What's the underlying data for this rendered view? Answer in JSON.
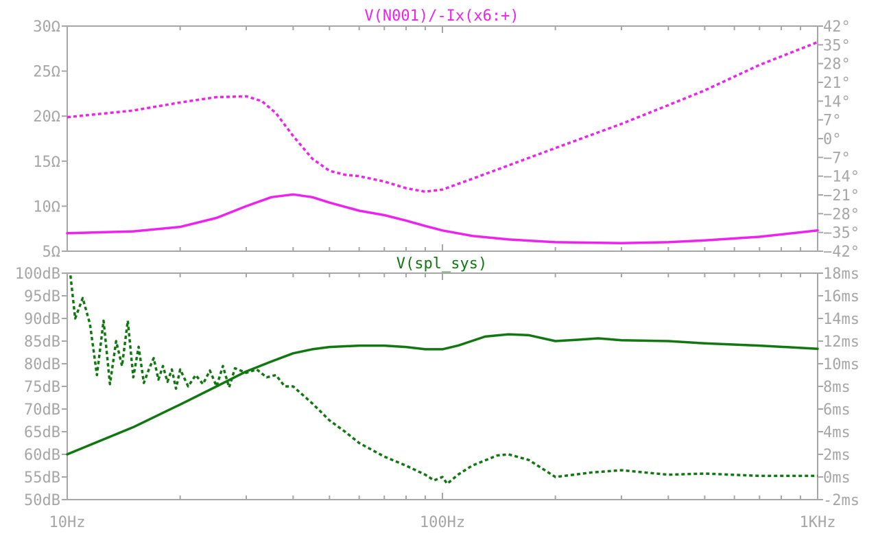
{
  "chart_data": [
    {
      "type": "line",
      "title": "V(N001)/-Ix(x6:+)",
      "color": "#ee22ee",
      "x_scale": "log",
      "xlim": [
        10,
        1000
      ],
      "ylim_left": [
        5,
        30
      ],
      "ylim_right": [
        -42,
        42
      ],
      "left_ticks": [
        {
          "value": 30,
          "label": "30Ω"
        },
        {
          "value": 25,
          "label": "25Ω"
        },
        {
          "value": 20,
          "label": "20Ω"
        },
        {
          "value": 15,
          "label": "15Ω"
        },
        {
          "value": 10,
          "label": "10Ω"
        },
        {
          "value": 5,
          "label": "5Ω"
        }
      ],
      "right_ticks": [
        {
          "value": 42,
          "label": "42°"
        },
        {
          "value": 35,
          "label": "35°"
        },
        {
          "value": 28,
          "label": "28°"
        },
        {
          "value": 21,
          "label": "21°"
        },
        {
          "value": 14,
          "label": "14°"
        },
        {
          "value": 7,
          "label": "7°"
        },
        {
          "value": 0,
          "label": "0°"
        },
        {
          "value": -7,
          "label": "−7°"
        },
        {
          "value": -14,
          "label": "−14°"
        },
        {
          "value": -21,
          "label": "−21°"
        },
        {
          "value": -28,
          "label": "−28°"
        },
        {
          "value": -35,
          "label": "−35°"
        },
        {
          "value": -42,
          "label": "−42°"
        }
      ],
      "series": [
        {
          "axis": "left",
          "style": "solid",
          "x": [
            10,
            15,
            20,
            25,
            30,
            35,
            40,
            45,
            50,
            60,
            70,
            80,
            90,
            100,
            120,
            150,
            200,
            300,
            400,
            500,
            700,
            1000
          ],
          "y": [
            7.0,
            7.2,
            7.7,
            8.7,
            10.0,
            11.0,
            11.3,
            11.0,
            10.4,
            9.5,
            9.0,
            8.4,
            7.8,
            7.3,
            6.7,
            6.3,
            6.0,
            5.9,
            6.0,
            6.2,
            6.6,
            7.3
          ]
        },
        {
          "axis": "right",
          "style": "dotted",
          "x": [
            10,
            15,
            20,
            25,
            30,
            33,
            36,
            40,
            45,
            50,
            55,
            60,
            70,
            80,
            90,
            100,
            120,
            150,
            200,
            300,
            400,
            500,
            700,
            1000
          ],
          "y": [
            8.0,
            10.5,
            13.5,
            15.5,
            15.8,
            14.0,
            9.5,
            1.0,
            -7.5,
            -12.0,
            -13.5,
            -14.0,
            -16.0,
            -18.5,
            -19.8,
            -19.0,
            -15.0,
            -10.0,
            -3.5,
            5.5,
            12.5,
            18.0,
            27.5,
            36.0
          ]
        }
      ]
    },
    {
      "type": "line",
      "title": "V(spl_sys)",
      "color": "#117711",
      "x_scale": "log",
      "xlim": [
        10,
        1000
      ],
      "ylim_left": [
        50,
        100
      ],
      "ylim_right": [
        -2,
        18
      ],
      "left_ticks": [
        {
          "value": 100,
          "label": "100dB"
        },
        {
          "value": 95,
          "label": "95dB"
        },
        {
          "value": 90,
          "label": "90dB"
        },
        {
          "value": 85,
          "label": "85dB"
        },
        {
          "value": 80,
          "label": "80dB"
        },
        {
          "value": 75,
          "label": "75dB"
        },
        {
          "value": 70,
          "label": "70dB"
        },
        {
          "value": 65,
          "label": "65dB"
        },
        {
          "value": 60,
          "label": "60dB"
        },
        {
          "value": 55,
          "label": "55dB"
        },
        {
          "value": 50,
          "label": "50dB"
        }
      ],
      "right_ticks": [
        {
          "value": 18,
          "label": "18ms"
        },
        {
          "value": 16,
          "label": "16ms"
        },
        {
          "value": 14,
          "label": "14ms"
        },
        {
          "value": 12,
          "label": "12ms"
        },
        {
          "value": 10,
          "label": "10ms"
        },
        {
          "value": 8,
          "label": "8ms"
        },
        {
          "value": 6,
          "label": "6ms"
        },
        {
          "value": 4,
          "label": "4ms"
        },
        {
          "value": 2,
          "label": "2ms"
        },
        {
          "value": 0,
          "label": "0ms"
        },
        {
          "value": -2,
          "label": "-2ms"
        }
      ],
      "x_ticks": [
        {
          "value": 10,
          "label": "10Hz"
        },
        {
          "value": 100,
          "label": "100Hz"
        },
        {
          "value": 1000,
          "label": "1KHz"
        }
      ],
      "series": [
        {
          "axis": "left",
          "style": "solid",
          "x": [
            10,
            15,
            20,
            25,
            30,
            35,
            40,
            45,
            50,
            60,
            70,
            80,
            90,
            100,
            110,
            130,
            150,
            170,
            200,
            230,
            260,
            300,
            400,
            500,
            700,
            1000
          ],
          "y": [
            60.0,
            66.0,
            71.0,
            75.0,
            78.3,
            80.5,
            82.3,
            83.2,
            83.7,
            84.0,
            84.0,
            83.7,
            83.2,
            83.2,
            84.0,
            86.0,
            86.5,
            86.3,
            85.0,
            85.3,
            85.6,
            85.2,
            85.0,
            84.5,
            84.0,
            83.3
          ]
        },
        {
          "axis": "right",
          "style": "dotted",
          "x": [
            10.2,
            10.5,
            11,
            11.5,
            12,
            12.5,
            13,
            13.5,
            14,
            14.5,
            15,
            15.5,
            16,
            16.5,
            17,
            17.5,
            18,
            18.5,
            19,
            19.5,
            20,
            21,
            22,
            23,
            24,
            25,
            26,
            27,
            28,
            30,
            32,
            34,
            36,
            38,
            40,
            45,
            50,
            55,
            60,
            70,
            80,
            90,
            95,
            100,
            103,
            110,
            120,
            140,
            150,
            170,
            200,
            250,
            300,
            400,
            500,
            700,
            1000
          ],
          "y": [
            17.8,
            14.0,
            15.8,
            13.5,
            9.0,
            13.8,
            8.2,
            12.0,
            9.8,
            13.8,
            8.8,
            11.5,
            8.3,
            9.5,
            10.5,
            8.6,
            9.8,
            8.4,
            9.5,
            7.8,
            9.5,
            8.0,
            9.0,
            8.2,
            9.4,
            8.0,
            9.8,
            7.9,
            9.6,
            9.2,
            9.5,
            8.8,
            9.0,
            8.0,
            8.0,
            6.5,
            5.0,
            4.0,
            3.0,
            1.8,
            1.0,
            0.2,
            -0.3,
            0.0,
            -0.6,
            0.2,
            1.0,
            1.9,
            2.0,
            1.5,
            0.0,
            0.4,
            0.6,
            0.2,
            0.3,
            0.1,
            0.1
          ]
        }
      ]
    }
  ]
}
